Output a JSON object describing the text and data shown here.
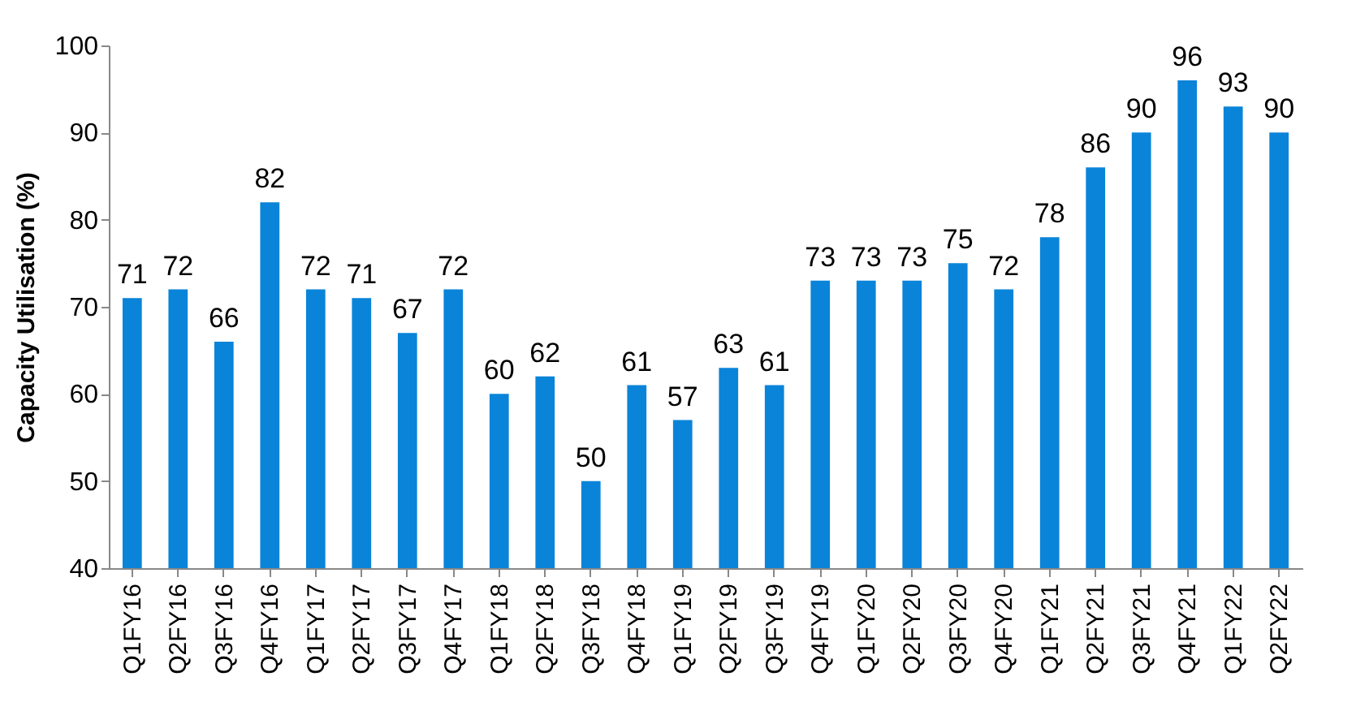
{
  "chart_data": {
    "type": "bar",
    "ylabel": "Capacity Utilisation (%)",
    "categories": [
      "Q1FY16",
      "Q2FY16",
      "Q3FY16",
      "Q4FY16",
      "Q1FY17",
      "Q2FY17",
      "Q3FY17",
      "Q4FY17",
      "Q1FY18",
      "Q2FY18",
      "Q3FY18",
      "Q4FY18",
      "Q1FY19",
      "Q2FY19",
      "Q3FY19",
      "Q4FY19",
      "Q1FY20",
      "Q2FY20",
      "Q3FY20",
      "Q4FY20",
      "Q1FY21",
      "Q2FY21",
      "Q3FY21",
      "Q4FY21",
      "Q1FY22",
      "Q2FY22"
    ],
    "values": [
      71,
      72,
      66,
      82,
      72,
      71,
      67,
      72,
      60,
      62,
      50,
      61,
      57,
      63,
      61,
      73,
      73,
      73,
      75,
      72,
      78,
      86,
      90,
      96,
      93,
      90
    ],
    "color": "#0a84d9",
    "data_labels": true,
    "ylim": [
      40,
      100
    ],
    "yticks": [
      40,
      50,
      60,
      70,
      80,
      90,
      100
    ],
    "grid": false
  }
}
